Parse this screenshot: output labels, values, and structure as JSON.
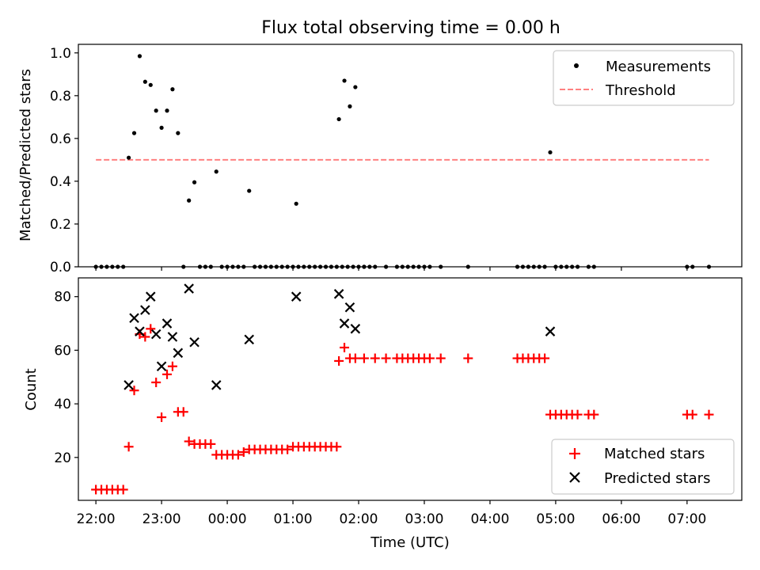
{
  "title": "Flux total observing time = 0.00 h",
  "chart_data": [
    {
      "type": "scatter",
      "xlabel": "",
      "ylabel": "Matched/Predicted stars",
      "xlim": [
        "21:44",
        "07:50"
      ],
      "ylim": [
        0.0,
        1.04
      ],
      "yticks": [
        "0.0",
        "0.2",
        "0.4",
        "0.6",
        "0.8",
        "1.0"
      ],
      "grid": false,
      "legend_position": "top-right",
      "colors": {
        "measurements": "#000000",
        "threshold": "#ff8080"
      },
      "series": [
        {
          "name": "Measurements",
          "marker": "dot",
          "points": [
            [
              "22:00",
              0
            ],
            [
              "22:05",
              0
            ],
            [
              "22:10",
              0
            ],
            [
              "22:15",
              0
            ],
            [
              "22:20",
              0
            ],
            [
              "22:25",
              0
            ],
            [
              "22:30",
              0.51
            ],
            [
              "22:35",
              0.625
            ],
            [
              "22:40",
              0.985
            ],
            [
              "22:45",
              0.865
            ],
            [
              "22:50",
              0.85
            ],
            [
              "22:55",
              0.73
            ],
            [
              "23:00",
              0.65
            ],
            [
              "23:05",
              0.73
            ],
            [
              "23:10",
              0.83
            ],
            [
              "23:15",
              0.625
            ],
            [
              "23:20",
              0
            ],
            [
              "23:25",
              0.31
            ],
            [
              "23:30",
              0.395
            ],
            [
              "23:35",
              0
            ],
            [
              "23:40",
              0
            ],
            [
              "23:45",
              0
            ],
            [
              "23:50",
              0.445
            ],
            [
              "23:55",
              0
            ],
            [
              "00:00",
              0
            ],
            [
              "00:05",
              0
            ],
            [
              "00:10",
              0
            ],
            [
              "00:15",
              0
            ],
            [
              "00:20",
              0.355
            ],
            [
              "00:25",
              0
            ],
            [
              "00:30",
              0
            ],
            [
              "00:35",
              0
            ],
            [
              "00:40",
              0
            ],
            [
              "00:45",
              0
            ],
            [
              "00:50",
              0
            ],
            [
              "00:55",
              0
            ],
            [
              "01:00",
              0
            ],
            [
              "01:05",
              0
            ],
            [
              "01:10",
              0
            ],
            [
              "01:15",
              0
            ],
            [
              "01:20",
              0
            ],
            [
              "01:25",
              0
            ],
            [
              "01:30",
              0
            ],
            [
              "01:35",
              0
            ],
            [
              "01:40",
              0
            ],
            [
              "01:45",
              0
            ],
            [
              "01:50",
              0
            ],
            [
              "01:55",
              0
            ],
            [
              "02:00",
              0
            ],
            [
              "02:05",
              0
            ],
            [
              "02:10",
              0
            ],
            [
              "01:03",
              0.295
            ],
            [
              "01:42",
              0.69
            ],
            [
              "01:47",
              0.87
            ],
            [
              "01:52",
              0.75
            ],
            [
              "01:57",
              0.84
            ],
            [
              "02:05",
              0
            ],
            [
              "02:15",
              0
            ],
            [
              "02:25",
              0
            ],
            [
              "02:35",
              0
            ],
            [
              "02:40",
              0
            ],
            [
              "02:45",
              0
            ],
            [
              "02:50",
              0
            ],
            [
              "02:55",
              0
            ],
            [
              "03:00",
              0
            ],
            [
              "03:05",
              0
            ],
            [
              "03:15",
              0
            ],
            [
              "03:40",
              0
            ],
            [
              "04:25",
              0
            ],
            [
              "04:30",
              0
            ],
            [
              "04:35",
              0
            ],
            [
              "04:40",
              0
            ],
            [
              "04:45",
              0
            ],
            [
              "04:50",
              0
            ],
            [
              "04:55",
              0.535
            ],
            [
              "05:00",
              0
            ],
            [
              "05:05",
              0
            ],
            [
              "05:10",
              0
            ],
            [
              "05:15",
              0
            ],
            [
              "05:20",
              0
            ],
            [
              "05:30",
              0
            ],
            [
              "05:35",
              0
            ],
            [
              "07:00",
              0
            ],
            [
              "07:05",
              0
            ],
            [
              "07:20",
              0
            ]
          ]
        },
        {
          "name": "Threshold",
          "style": "dashed",
          "points": [
            [
              "22:00",
              0.5
            ],
            [
              "07:20",
              0.5
            ]
          ]
        }
      ]
    },
    {
      "type": "scatter",
      "xlabel": "Time (UTC)",
      "ylabel": "Count",
      "xlim": [
        "21:44",
        "07:50"
      ],
      "ylim": [
        4,
        87
      ],
      "yticks": [
        "20",
        "40",
        "60",
        "80"
      ],
      "xticks": [
        "22:00",
        "23:00",
        "00:00",
        "01:00",
        "02:00",
        "03:00",
        "04:00",
        "05:00",
        "06:00",
        "07:00"
      ],
      "grid": false,
      "legend_position": "bottom-right",
      "colors": {
        "matched": "#ff0000",
        "predicted": "#000000"
      },
      "series": [
        {
          "name": "Matched stars",
          "marker": "plus",
          "points": [
            [
              "22:00",
              8
            ],
            [
              "22:05",
              8
            ],
            [
              "22:10",
              8
            ],
            [
              "22:15",
              8
            ],
            [
              "22:20",
              8
            ],
            [
              "22:25",
              8
            ],
            [
              "22:30",
              24
            ],
            [
              "22:35",
              45
            ],
            [
              "22:40",
              66
            ],
            [
              "22:45",
              65
            ],
            [
              "22:50",
              68
            ],
            [
              "22:55",
              48
            ],
            [
              "23:00",
              35
            ],
            [
              "23:05",
              51
            ],
            [
              "23:10",
              54
            ],
            [
              "23:15",
              37
            ],
            [
              "23:20",
              37
            ],
            [
              "23:25",
              26
            ],
            [
              "23:30",
              25
            ],
            [
              "23:35",
              25
            ],
            [
              "23:40",
              25
            ],
            [
              "23:45",
              25
            ],
            [
              "23:50",
              21
            ],
            [
              "23:55",
              21
            ],
            [
              "00:00",
              21
            ],
            [
              "00:05",
              21
            ],
            [
              "00:10",
              21
            ],
            [
              "00:15",
              22
            ],
            [
              "00:20",
              23
            ],
            [
              "00:25",
              23
            ],
            [
              "00:30",
              23
            ],
            [
              "00:35",
              23
            ],
            [
              "00:40",
              23
            ],
            [
              "00:45",
              23
            ],
            [
              "00:50",
              23
            ],
            [
              "00:55",
              23
            ],
            [
              "01:00",
              24
            ],
            [
              "01:05",
              24
            ],
            [
              "01:10",
              24
            ],
            [
              "01:15",
              24
            ],
            [
              "01:20",
              24
            ],
            [
              "01:25",
              24
            ],
            [
              "01:30",
              24
            ],
            [
              "01:35",
              24
            ],
            [
              "01:40",
              24
            ],
            [
              "01:42",
              56
            ],
            [
              "01:47",
              61
            ],
            [
              "01:52",
              57
            ],
            [
              "01:57",
              57
            ],
            [
              "02:05",
              57
            ],
            [
              "02:15",
              57
            ],
            [
              "02:25",
              57
            ],
            [
              "02:35",
              57
            ],
            [
              "02:40",
              57
            ],
            [
              "02:45",
              57
            ],
            [
              "02:50",
              57
            ],
            [
              "02:55",
              57
            ],
            [
              "03:00",
              57
            ],
            [
              "03:05",
              57
            ],
            [
              "03:15",
              57
            ],
            [
              "03:40",
              57
            ],
            [
              "04:25",
              57
            ],
            [
              "04:30",
              57
            ],
            [
              "04:35",
              57
            ],
            [
              "04:40",
              57
            ],
            [
              "04:45",
              57
            ],
            [
              "04:50",
              57
            ],
            [
              "04:55",
              36
            ],
            [
              "05:00",
              36
            ],
            [
              "05:05",
              36
            ],
            [
              "05:10",
              36
            ],
            [
              "05:15",
              36
            ],
            [
              "05:20",
              36
            ],
            [
              "05:30",
              36
            ],
            [
              "05:35",
              36
            ],
            [
              "07:00",
              36
            ],
            [
              "07:05",
              36
            ],
            [
              "07:20",
              36
            ]
          ]
        },
        {
          "name": "Predicted stars",
          "marker": "x",
          "points": [
            [
              "22:30",
              47
            ],
            [
              "22:35",
              72
            ],
            [
              "22:40",
              67
            ],
            [
              "22:45",
              75
            ],
            [
              "22:50",
              80
            ],
            [
              "22:55",
              66
            ],
            [
              "23:00",
              54
            ],
            [
              "23:05",
              70
            ],
            [
              "23:10",
              65
            ],
            [
              "23:15",
              59
            ],
            [
              "23:25",
              83
            ],
            [
              "23:30",
              63
            ],
            [
              "23:50",
              47
            ],
            [
              "00:20",
              64
            ],
            [
              "01:03",
              80
            ],
            [
              "01:42",
              81
            ],
            [
              "01:47",
              70
            ],
            [
              "01:52",
              76
            ],
            [
              "01:57",
              68
            ],
            [
              "04:55",
              67
            ]
          ]
        }
      ]
    }
  ]
}
